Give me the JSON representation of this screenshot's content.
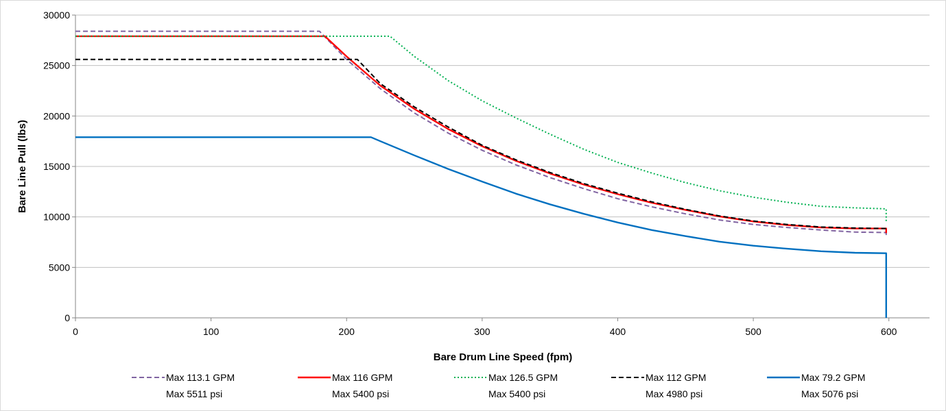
{
  "chart_data": {
    "type": "line",
    "title": "",
    "xlabel": "Bare Drum Line Speed (fpm)",
    "ylabel": "Bare Line Pull (lbs)",
    "xlim": [
      0,
      630
    ],
    "ylim": [
      0,
      30000
    ],
    "xticks": [
      0,
      100,
      200,
      300,
      400,
      500,
      600
    ],
    "yticks": [
      0,
      5000,
      10000,
      15000,
      20000,
      25000,
      30000
    ],
    "grid": "horizontal",
    "legend_position": "bottom",
    "series": [
      {
        "name": "Max 113.1 GPM",
        "name2": "Max 5511 psi",
        "color": "#8064a2",
        "dash": "dashed",
        "x": [
          0,
          180,
          200,
          225,
          250,
          275,
          300,
          325,
          350,
          375,
          400,
          425,
          450,
          475,
          500,
          525,
          550,
          575,
          598,
          598
        ],
        "y": [
          28400,
          28400,
          25600,
          22700,
          20300,
          18300,
          16600,
          15150,
          13900,
          12800,
          11800,
          11000,
          10300,
          9700,
          9250,
          8950,
          8700,
          8500,
          8450,
          8000
        ]
      },
      {
        "name": "Max 116 GPM",
        "name2": "Max 5400 psi",
        "color": "#ff0000",
        "dash": "solid",
        "x": [
          0,
          184,
          200,
          225,
          250,
          275,
          300,
          325,
          350,
          375,
          400,
          425,
          450,
          475,
          500,
          525,
          550,
          575,
          598,
          598
        ],
        "y": [
          27900,
          27900,
          25900,
          23000,
          20700,
          18700,
          17000,
          15550,
          14300,
          13200,
          12250,
          11400,
          10700,
          10050,
          9550,
          9200,
          8950,
          8850,
          8850,
          8400
        ]
      },
      {
        "name": "Max 126.5 GPM",
        "name2": "Max 5400 psi",
        "color": "#00b050",
        "dash": "dotted",
        "x": [
          0,
          232,
          250,
          275,
          300,
          325,
          350,
          375,
          400,
          425,
          450,
          475,
          500,
          525,
          550,
          575,
          598,
          598
        ],
        "y": [
          27900,
          27900,
          25900,
          23500,
          21500,
          19800,
          18200,
          16700,
          15400,
          14350,
          13400,
          12600,
          11950,
          11450,
          11050,
          10900,
          10800,
          9500
        ]
      },
      {
        "name": "Max 112 GPM",
        "name2": "Max 4980 psi",
        "color": "#000000",
        "dash": "dashed",
        "x": [
          0,
          208,
          225,
          250,
          275,
          300,
          325,
          350,
          375,
          400,
          425,
          450,
          475,
          500,
          525,
          550,
          575,
          598
        ],
        "y": [
          25600,
          25600,
          23200,
          20900,
          18900,
          17100,
          15650,
          14400,
          13300,
          12350,
          11500,
          10750,
          10100,
          9600,
          9250,
          9000,
          8900,
          8850
        ]
      },
      {
        "name": "Max 79.2 GPM",
        "name2": "Max 5076 psi",
        "color": "#0070c0",
        "dash": "solid",
        "x": [
          0,
          218,
          225,
          250,
          275,
          300,
          325,
          350,
          375,
          400,
          425,
          450,
          475,
          500,
          525,
          550,
          575,
          598,
          598
        ],
        "y": [
          17900,
          17900,
          17500,
          16100,
          14750,
          13500,
          12300,
          11250,
          10300,
          9450,
          8700,
          8100,
          7550,
          7150,
          6850,
          6600,
          6450,
          6400,
          0
        ]
      }
    ]
  }
}
